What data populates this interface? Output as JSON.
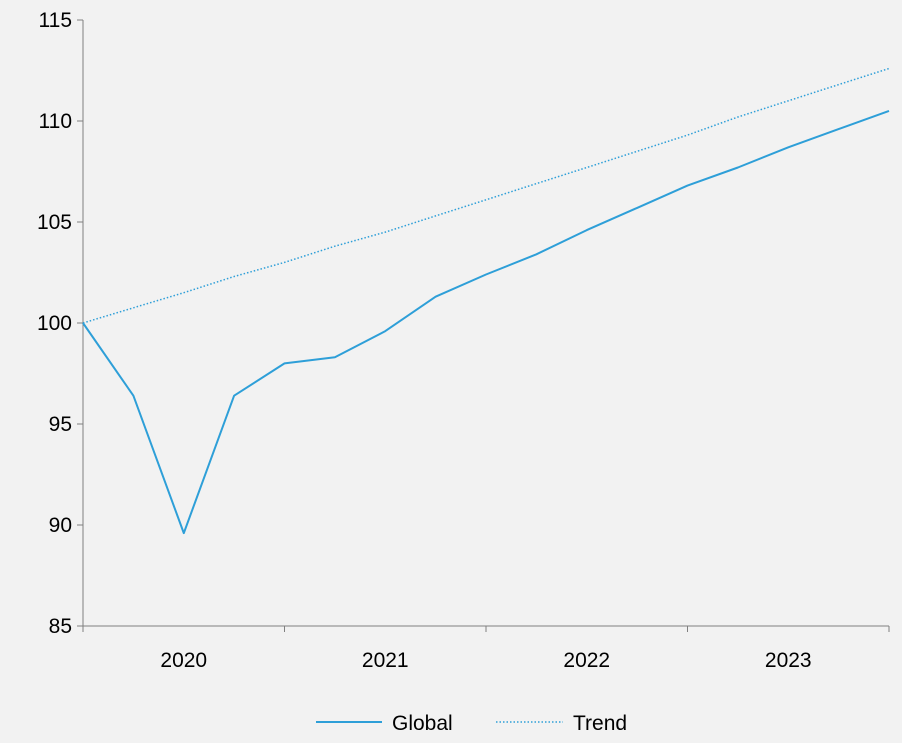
{
  "chart_data": {
    "type": "line",
    "title": "",
    "xlabel": "",
    "ylabel": "",
    "ylim": [
      85,
      115
    ],
    "yticks": [
      85,
      90,
      95,
      100,
      105,
      110,
      115
    ],
    "year_labels": [
      "2020",
      "2021",
      "2022",
      "2023"
    ],
    "x": [
      "2020 Q1",
      "2020 Q2",
      "2020 Q3",
      "2020 Q4",
      "2021 Q1",
      "2021 Q2",
      "2021 Q3",
      "2021 Q4",
      "2022 Q1",
      "2022 Q2",
      "2022 Q3",
      "2022 Q4",
      "2023 Q1",
      "2023 Q2",
      "2023 Q3",
      "2023 Q4",
      "2024 Q1"
    ],
    "series": [
      {
        "name": "Global",
        "color": "#2e9fd8",
        "style": "solid",
        "values": [
          100.0,
          96.4,
          89.6,
          96.4,
          98.0,
          98.3,
          99.6,
          101.3,
          102.4,
          103.4,
          104.6,
          105.7,
          106.8,
          107.7,
          108.7,
          109.6,
          110.5
        ]
      },
      {
        "name": "Trend",
        "color": "#2e9fd8",
        "style": "dotted",
        "values": [
          100.0,
          100.75,
          101.5,
          102.3,
          103.0,
          103.8,
          104.5,
          105.3,
          106.1,
          106.9,
          107.7,
          108.5,
          109.3,
          110.2,
          111.0,
          111.8,
          112.6
        ]
      }
    ],
    "grid": false,
    "legend_position": "bottom-center"
  }
}
